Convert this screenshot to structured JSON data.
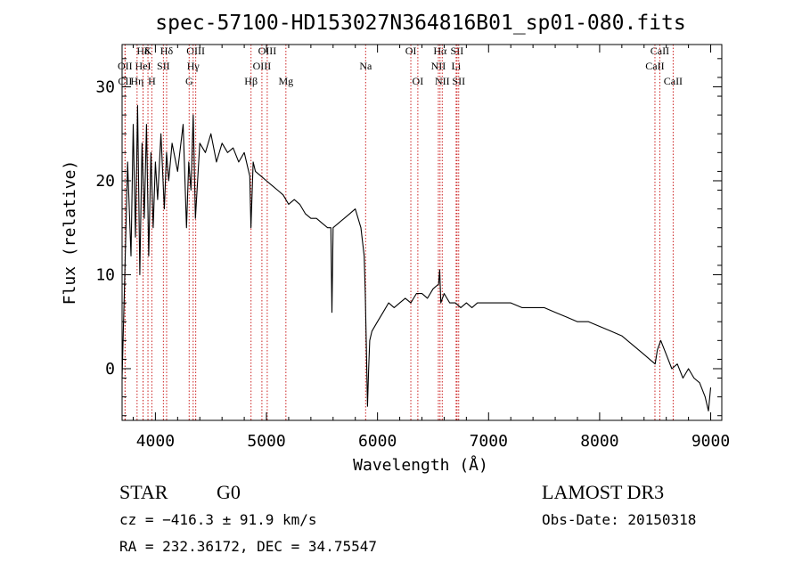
{
  "chart_data": {
    "type": "line",
    "title": "spec-57100-HD153027N364816B01_sp01-080.fits",
    "xlabel": "Wavelength (Å)",
    "ylabel": "Flux (relative)",
    "xlim": [
      3700,
      9100
    ],
    "ylim": [
      -5.5,
      34.5
    ],
    "xticks": [
      4000,
      5000,
      6000,
      7000,
      8000,
      9000
    ],
    "yticks": [
      0,
      10,
      20,
      30
    ],
    "series": [
      {
        "name": "spectrum",
        "x": [
          3700,
          3720,
          3750,
          3780,
          3800,
          3820,
          3840,
          3860,
          3880,
          3900,
          3920,
          3940,
          3960,
          3980,
          4000,
          4020,
          4050,
          4080,
          4100,
          4120,
          4150,
          4200,
          4250,
          4280,
          4300,
          4320,
          4340,
          4360,
          4400,
          4450,
          4500,
          4550,
          4600,
          4650,
          4700,
          4750,
          4800,
          4850,
          4860,
          4880,
          4900,
          4950,
          5000,
          5050,
          5100,
          5150,
          5200,
          5250,
          5300,
          5350,
          5400,
          5450,
          5500,
          5550,
          5580,
          5590,
          5600,
          5650,
          5700,
          5750,
          5800,
          5850,
          5880,
          5890,
          5900,
          5910,
          5920,
          5930,
          5950,
          6000,
          6050,
          6100,
          6150,
          6200,
          6250,
          6300,
          6350,
          6400,
          6450,
          6500,
          6550,
          6560,
          6570,
          6600,
          6650,
          6700,
          6750,
          6800,
          6850,
          6900,
          6950,
          7000,
          7100,
          7200,
          7300,
          7400,
          7500,
          7600,
          7700,
          7800,
          7900,
          8000,
          8100,
          8200,
          8300,
          8400,
          8450,
          8500,
          8520,
          8550,
          8600,
          8650,
          8700,
          8750,
          8800,
          8850,
          8900,
          8950,
          8980,
          9000
        ],
        "y": [
          -1,
          8,
          22,
          12,
          26,
          14,
          28,
          10,
          24,
          16,
          26,
          12,
          23,
          15,
          22,
          18,
          25,
          17,
          23,
          20,
          24,
          21,
          26,
          15,
          22,
          19,
          27,
          16,
          24,
          23,
          25,
          22,
          24,
          23,
          23.5,
          22,
          23,
          20.5,
          15,
          22,
          21,
          20.5,
          20,
          19.5,
          19,
          18.5,
          17.5,
          18,
          17.5,
          16.5,
          16,
          16,
          15.5,
          15,
          15,
          6,
          15,
          15.5,
          16,
          16.5,
          17,
          15,
          12,
          8,
          2,
          -4,
          0,
          3,
          4,
          5,
          6,
          7,
          6.5,
          7,
          7.5,
          7,
          8,
          8,
          7.5,
          8.5,
          9,
          10.5,
          7,
          8,
          7,
          7,
          6.5,
          7,
          6.5,
          7,
          7,
          7,
          7,
          7,
          6.5,
          6.5,
          6.5,
          6,
          5.5,
          5,
          5,
          4.5,
          4,
          3.5,
          2.5,
          1.5,
          1,
          0.5,
          2,
          3,
          1.5,
          0,
          0.5,
          -1,
          0,
          -1,
          -1.5,
          -3,
          -4.5,
          -2
        ]
      }
    ],
    "lines": [
      {
        "name": "Hδ",
        "wl": 3889,
        "row": 0
      },
      {
        "name": "OII",
        "wl": 3727,
        "row": 1
      },
      {
        "name": "CII",
        "wl": 3727,
        "row": 2
      },
      {
        "name": "HeI",
        "wl": 3889,
        "row": 1
      },
      {
        "name": "Hη",
        "wl": 3835,
        "row": 2
      },
      {
        "name": "K",
        "wl": 3933,
        "row": 0
      },
      {
        "name": "SII",
        "wl": 4072,
        "row": 1
      },
      {
        "name": "H",
        "wl": 3968,
        "row": 2
      },
      {
        "name": "Hδ",
        "wl": 4101,
        "row": 0
      },
      {
        "name": "OIII",
        "wl": 4363,
        "row": 0
      },
      {
        "name": "Hγ",
        "wl": 4340,
        "row": 1
      },
      {
        "name": "G",
        "wl": 4304,
        "row": 2
      },
      {
        "name": "Hβ",
        "wl": 4861,
        "row": 2
      },
      {
        "name": "OIII",
        "wl": 5007,
        "row": 0
      },
      {
        "name": "OIII",
        "wl": 4959,
        "row": 1
      },
      {
        "name": "Mg",
        "wl": 5175,
        "row": 2
      },
      {
        "name": "Na",
        "wl": 5893,
        "row": 1
      },
      {
        "name": "OI",
        "wl": 6300,
        "row": 0
      },
      {
        "name": "OI",
        "wl": 6363,
        "row": 2
      },
      {
        "name": "Hα",
        "wl": 6563,
        "row": 0
      },
      {
        "name": "NII",
        "wl": 6548,
        "row": 1
      },
      {
        "name": "NII",
        "wl": 6583,
        "row": 2
      },
      {
        "name": "SII",
        "wl": 6716,
        "row": 0
      },
      {
        "name": "Li",
        "wl": 6708,
        "row": 1
      },
      {
        "name": "SII",
        "wl": 6731,
        "row": 2
      },
      {
        "name": "CaII",
        "wl": 8542,
        "row": 0
      },
      {
        "name": "CaII",
        "wl": 8498,
        "row": 1
      },
      {
        "name": "CaII",
        "wl": 8662,
        "row": 2
      }
    ]
  },
  "info": {
    "class": "STAR",
    "subclass": "G0",
    "survey": "LAMOST DR3",
    "cz": "cz = −416.3 ± 91.9 km/s",
    "obs_date": "Obs-Date: 20150318",
    "radec": "RA = 232.36172, DEC =  34.75547"
  }
}
